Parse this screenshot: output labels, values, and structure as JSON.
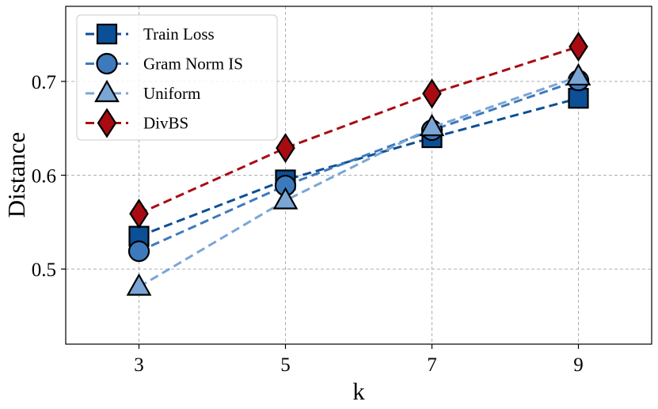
{
  "chart_data": {
    "type": "line",
    "title": "",
    "xlabel": "k",
    "ylabel": "Distance",
    "x": [
      3,
      5,
      7,
      9
    ],
    "xlim": [
      2,
      10
    ],
    "ylim": [
      0.42,
      0.78
    ],
    "xticks": [
      3,
      5,
      7,
      9
    ],
    "yticks": [
      0.5,
      0.6,
      0.7
    ],
    "ytick_labels": [
      "0.5",
      "0.6",
      "0.7"
    ],
    "grid": true,
    "legend_position": "top-left",
    "series": [
      {
        "name": "Train Loss",
        "values": [
          0.535,
          0.595,
          0.64,
          0.682
        ],
        "color": "#0b4f96",
        "marker": "square"
      },
      {
        "name": "Gram Norm IS",
        "values": [
          0.519,
          0.589,
          0.648,
          0.701
        ],
        "color": "#3d7abd",
        "marker": "circle"
      },
      {
        "name": "Uniform",
        "values": [
          0.481,
          0.573,
          0.651,
          0.705
        ],
        "color": "#7aa6d6",
        "marker": "triangle"
      },
      {
        "name": "DivBS",
        "values": [
          0.559,
          0.629,
          0.687,
          0.737
        ],
        "color": "#a80c12",
        "marker": "diamond"
      }
    ]
  }
}
